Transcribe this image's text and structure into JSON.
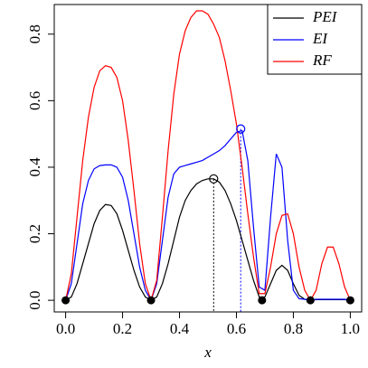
{
  "chart_data": {
    "type": "line",
    "x_label": "x",
    "x": [
      0,
      0.02,
      0.04,
      0.06,
      0.08,
      0.1,
      0.12,
      0.14,
      0.16,
      0.18,
      0.2,
      0.22,
      0.24,
      0.26,
      0.28,
      0.3,
      0.32,
      0.34,
      0.36,
      0.38,
      0.4,
      0.42,
      0.44,
      0.46,
      0.48,
      0.5,
      0.52,
      0.54,
      0.56,
      0.58,
      0.6,
      0.62,
      0.64,
      0.66,
      0.68,
      0.7,
      0.72,
      0.74,
      0.76,
      0.78,
      0.8,
      0.82,
      0.84,
      0.86,
      0.88,
      0.9,
      0.92,
      0.94,
      0.96,
      0.98,
      1.0
    ],
    "series": [
      {
        "name": "PEI",
        "color": "#000000",
        "values": [
          0,
          0.01,
          0.05,
          0.11,
          0.17,
          0.23,
          0.27,
          0.288,
          0.285,
          0.26,
          0.21,
          0.15,
          0.09,
          0.04,
          0.01,
          0,
          0.01,
          0.05,
          0.11,
          0.18,
          0.25,
          0.3,
          0.33,
          0.35,
          0.36,
          0.365,
          0.365,
          0.355,
          0.33,
          0.29,
          0.24,
          0.18,
          0.12,
          0.06,
          0.01,
          0.01,
          0.05,
          0.09,
          0.105,
          0.09,
          0.05,
          0.015,
          0.003,
          0,
          0.002,
          0.002,
          0.002,
          0.002,
          0.002,
          0.002,
          0
        ]
      },
      {
        "name": "EI",
        "color": "#0000ff",
        "values": [
          0,
          0.05,
          0.17,
          0.29,
          0.36,
          0.395,
          0.405,
          0.407,
          0.407,
          0.4,
          0.37,
          0.3,
          0.2,
          0.1,
          0.03,
          0,
          0.05,
          0.18,
          0.31,
          0.38,
          0.4,
          0.405,
          0.41,
          0.415,
          0.42,
          0.43,
          0.44,
          0.45,
          0.465,
          0.485,
          0.505,
          0.51,
          0.42,
          0.22,
          0.04,
          0.03,
          0.25,
          0.44,
          0.4,
          0.18,
          0.03,
          0.005,
          0.003,
          0,
          0.003,
          0.003,
          0.003,
          0.003,
          0.003,
          0.003,
          0
        ]
      },
      {
        "name": "RF",
        "color": "#ff0000",
        "values": [
          0,
          0.08,
          0.25,
          0.42,
          0.55,
          0.64,
          0.69,
          0.705,
          0.7,
          0.67,
          0.6,
          0.48,
          0.33,
          0.17,
          0.05,
          0,
          0.06,
          0.25,
          0.45,
          0.62,
          0.74,
          0.81,
          0.85,
          0.87,
          0.87,
          0.86,
          0.83,
          0.79,
          0.72,
          0.63,
          0.53,
          0.4,
          0.26,
          0.13,
          0.02,
          0.02,
          0.1,
          0.2,
          0.255,
          0.26,
          0.2,
          0.1,
          0.03,
          0,
          0.03,
          0.11,
          0.16,
          0.16,
          0.11,
          0.04,
          0
        ]
      }
    ],
    "design_points": {
      "x": [
        0,
        0.3,
        0.69,
        0.86,
        1.0
      ],
      "y": [
        0,
        0,
        0,
        0,
        0
      ]
    },
    "maxima": {
      "x": [
        0.52,
        0.615
      ],
      "y": [
        0.365,
        0.515
      ],
      "colors": [
        "#000000",
        "#0000ff"
      ]
    },
    "xlim": [
      -0.04,
      1.04
    ],
    "ylim": [
      -0.035,
      0.889
    ],
    "xticks": [
      {
        "value": 0,
        "label": "0.0"
      },
      0.2,
      0.4,
      0.6,
      0.8,
      {
        "value": 1,
        "label": "1.0"
      }
    ],
    "yticks": [
      {
        "value": 0,
        "label": "0.0"
      },
      0.2,
      0.4,
      0.6,
      0.8
    ],
    "legend": "top-right"
  }
}
